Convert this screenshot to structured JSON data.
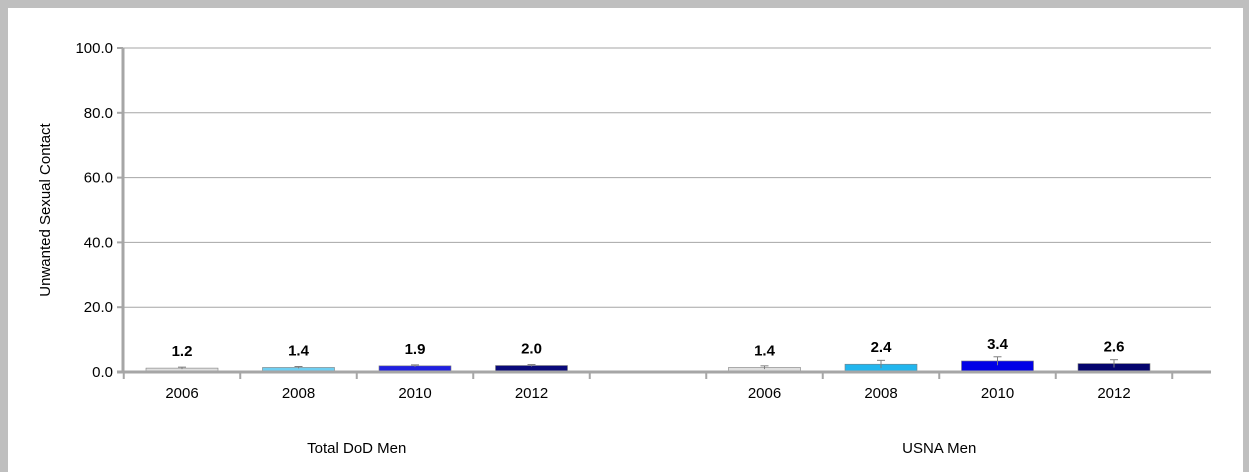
{
  "chart_data": {
    "type": "bar",
    "ylabel": "Unwanted  Sexual Contact",
    "ylim": [
      0,
      100
    ],
    "yticks": [
      "0.0",
      "20.0",
      "40.0",
      "60.0",
      "80.0",
      "100.0"
    ],
    "grid": true,
    "groups": [
      {
        "name": "Total DoD Men",
        "bars": [
          {
            "category": "2006",
            "value": 1.2,
            "label": "1.2",
            "color": "#e0e0e0",
            "error": 0.3
          },
          {
            "category": "2008",
            "value": 1.4,
            "label": "1.4",
            "color": "#6fcff2",
            "error": 0.3
          },
          {
            "category": "2010",
            "value": 1.9,
            "label": "1.9",
            "color": "#1f1fe0",
            "error": 0.3
          },
          {
            "category": "2012",
            "value": 2.0,
            "label": "2.0",
            "color": "#0a0a7a",
            "error": 0.3
          }
        ]
      },
      {
        "name": "USNA Men",
        "bars": [
          {
            "category": "2006",
            "value": 1.4,
            "label": "1.4",
            "color": "#e0e0e0",
            "error": 0.5
          },
          {
            "category": "2008",
            "value": 2.4,
            "label": "2.4",
            "color": "#22b6ee",
            "error": 1.2
          },
          {
            "category": "2010",
            "value": 3.4,
            "label": "3.4",
            "color": "#0000e6",
            "error": 1.3
          },
          {
            "category": "2012",
            "value": 2.6,
            "label": "2.6",
            "color": "#05056e",
            "error": 1.2
          }
        ]
      }
    ]
  }
}
